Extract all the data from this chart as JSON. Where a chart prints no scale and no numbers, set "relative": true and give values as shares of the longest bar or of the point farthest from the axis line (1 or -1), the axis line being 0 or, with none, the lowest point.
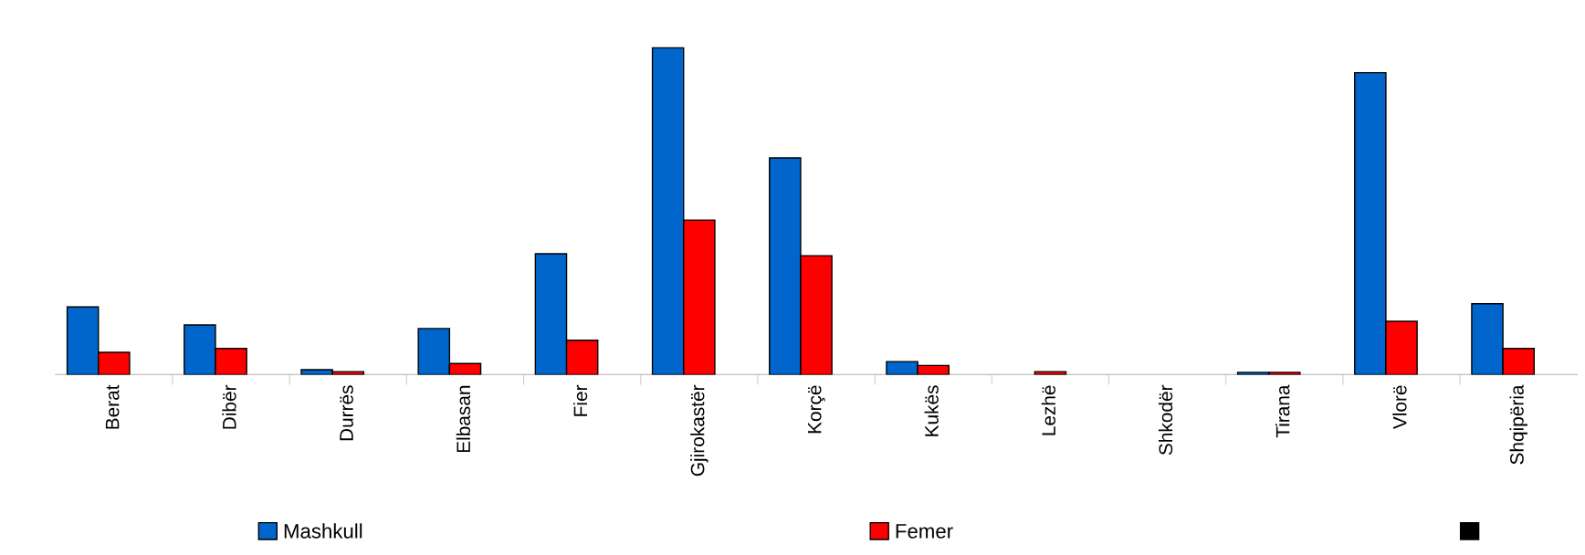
{
  "chart_data": {
    "type": "bar",
    "categories": [
      "Berat",
      "Dibër",
      "Durrës",
      "Elbasan",
      "Fier",
      "Gjirokastër",
      "Korçë",
      "Kukës",
      "Lezhë",
      "Shkodër",
      "Tirana",
      "Vlorë",
      "Shqipëria"
    ],
    "series": [
      {
        "name": "Mashkull",
        "color": "#0066cc",
        "values": [
          0.207,
          0.152,
          0.015,
          0.141,
          0.37,
          1,
          0.663,
          0.04,
          null,
          null,
          0.007,
          0.924,
          0.217
        ]
      },
      {
        "name": "Femer",
        "color": "#ff0000",
        "values": [
          0.068,
          0.08,
          0.009,
          0.034,
          0.105,
          0.473,
          0.364,
          0.028,
          0.009,
          null,
          0.007,
          0.163,
          0.08
        ]
      },
      {
        "color": "#000000",
        "values": [
          null,
          null,
          null,
          null,
          null,
          null,
          null,
          null,
          null,
          null,
          null,
          null,
          null
        ]
      }
    ],
    "relative": true,
    "legend": "bottom"
  }
}
